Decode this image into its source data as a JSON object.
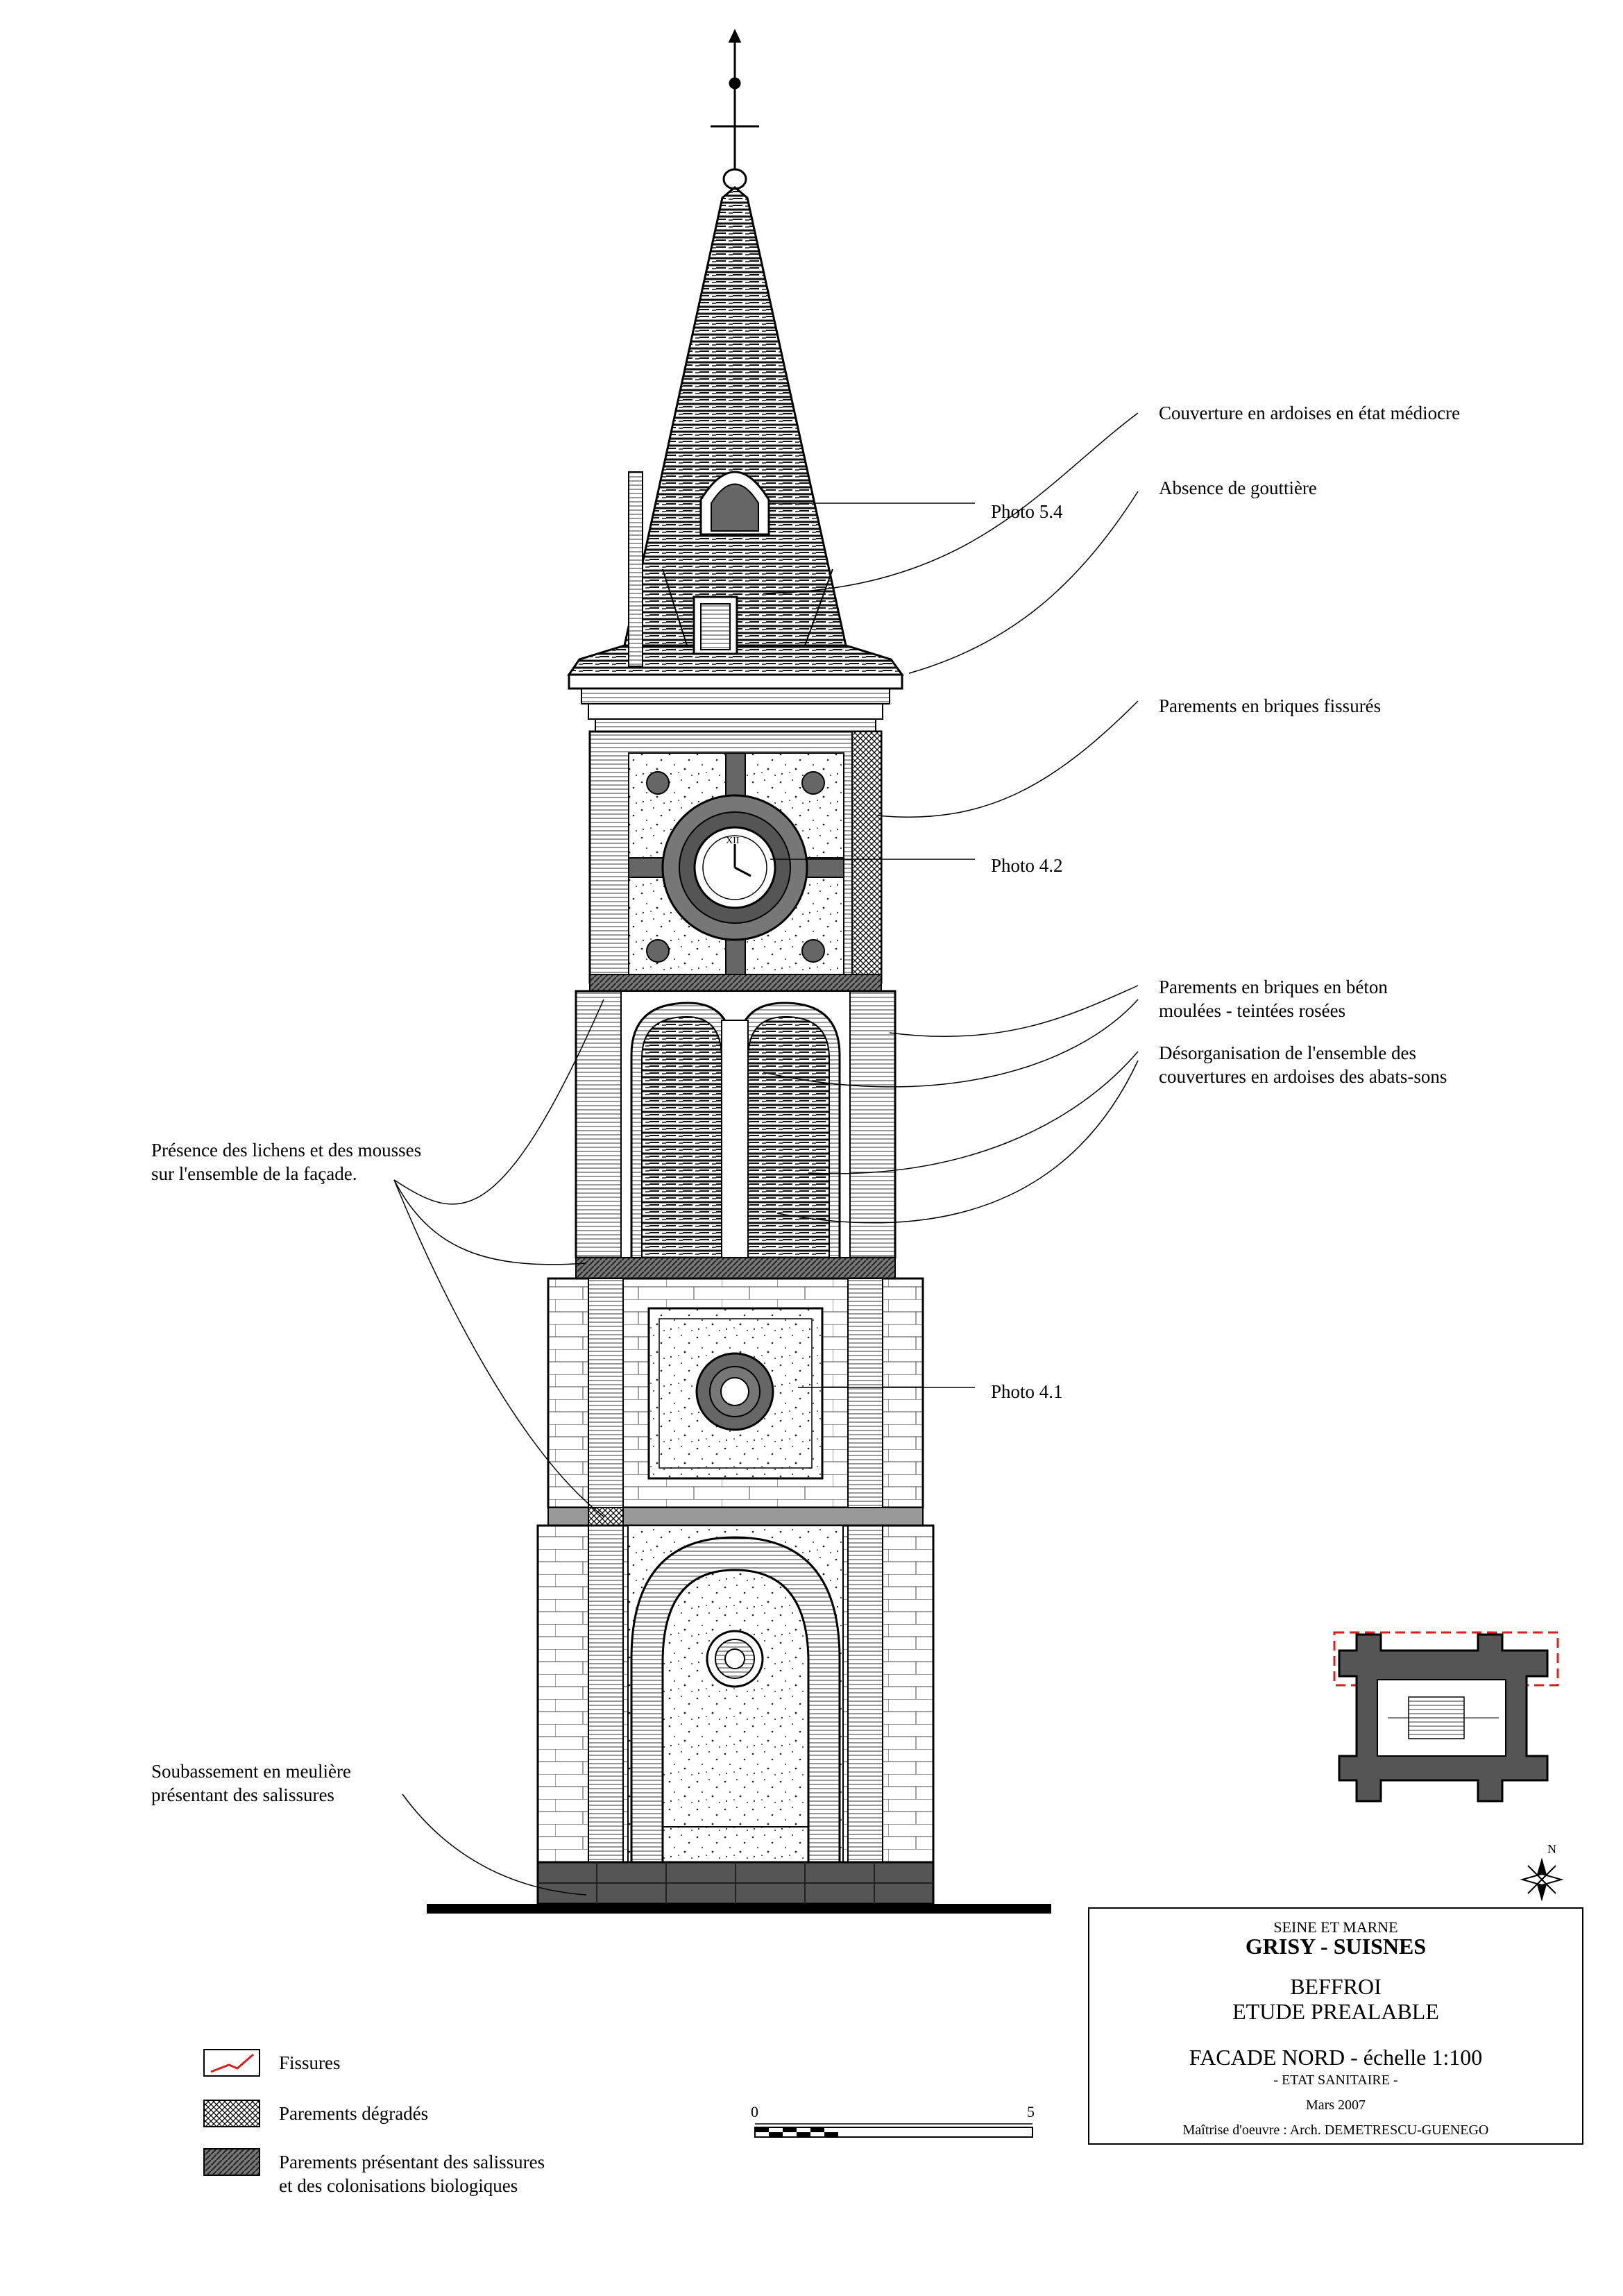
{
  "annotations": [
    {
      "id": "couverture",
      "lines": [
        "Couverture en ardoises en état médiocre"
      ]
    },
    {
      "id": "gouttiere",
      "lines": [
        "Absence de gouttière"
      ]
    },
    {
      "id": "photo54",
      "lines": [
        "Photo 5.4"
      ]
    },
    {
      "id": "briques-fissures",
      "lines": [
        "Parements en briques fissurés"
      ]
    },
    {
      "id": "photo42",
      "lines": [
        "Photo 4.2"
      ]
    },
    {
      "id": "briques-beton",
      "lines": [
        "Parements en briques en béton",
        "moulées - teintées rosées"
      ]
    },
    {
      "id": "desorganisation",
      "lines": [
        "Désorganisation de l'ensemble des",
        "couvertures en ardoises des abats-sons"
      ]
    },
    {
      "id": "lichens",
      "lines": [
        "Présence des lichens et des mousses",
        "sur l'ensemble de la façade."
      ]
    },
    {
      "id": "photo41",
      "lines": [
        "Photo 4.1"
      ]
    },
    {
      "id": "soubassement",
      "lines": [
        "Soubassement en meulière",
        "présentant des salissures"
      ]
    }
  ],
  "legend": [
    {
      "label": "Fissures"
    },
    {
      "label": "Parements dégradés"
    },
    {
      "label": "Parements présentant des salissures",
      "label2": "et des colonisations biologiques"
    }
  ],
  "scale_bar": {
    "start": "0",
    "end": "5"
  },
  "title_block": {
    "department": "SEINE ET MARNE",
    "commune": "GRISY - SUISNES",
    "building": "BEFFROI",
    "study": "ETUDE PREALABLE",
    "sheet": "FACADE NORD - échelle 1:100",
    "subtitle": "- ETAT SANITAIRE -",
    "date": "Mars 2007",
    "architect": "Maîtrise d'oeuvre : Arch. DEMETRESCU-GUENEGO"
  },
  "compass_label": "N",
  "clock_label": "XII",
  "colors": {
    "crack": "#d42020",
    "ink": "#000000",
    "stone": "#f4f4f4",
    "dark": "#555555"
  }
}
